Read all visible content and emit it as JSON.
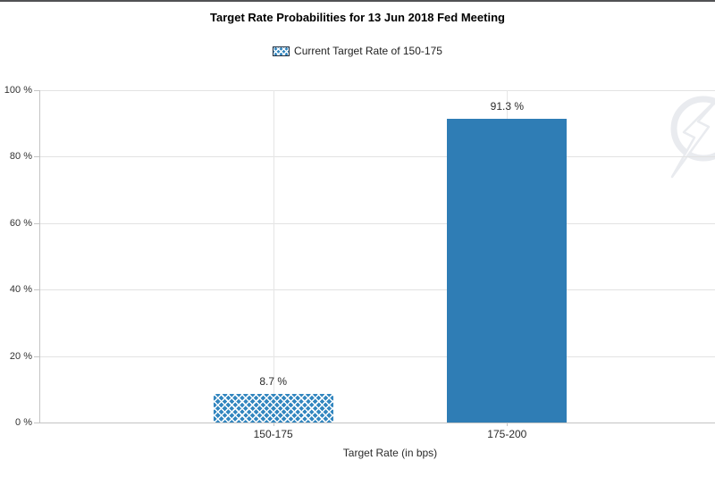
{
  "chart_data": {
    "type": "bar",
    "title": "Target Rate Probabilities for 13 Jun 2018 Fed Meeting",
    "legend": [
      {
        "label": "Current Target Rate of 150-175",
        "style": "crosshatch"
      }
    ],
    "legend_position": "top-center",
    "categories": [
      "150-175",
      "175-200"
    ],
    "values": [
      8.7,
      91.3
    ],
    "value_labels": [
      "8.7 %",
      "91.3 %"
    ],
    "bar_styles": [
      "crosshatch",
      "solid"
    ],
    "xlabel": "Target Rate (in bps)",
    "ylabel": "",
    "ylim": [
      0,
      100
    ],
    "y_ticks": [
      0,
      20,
      40,
      60,
      80,
      100
    ],
    "y_tick_labels": [
      "0 %",
      "20 %",
      "40 %",
      "60 %",
      "80 %",
      "100 %"
    ],
    "grid": true,
    "colors": {
      "bar_blue": "#2f7db5",
      "hatch_blue": "#3286bf",
      "legend_swatch_border": "#1c2b3c",
      "gridline": "#e2e2e2",
      "gridline_vertical": "#e6e6e6",
      "axis_line": "#c4c4c4",
      "watermark": "#e9ebef"
    },
    "watermark_icon": "lightning-bolt-circle-logo"
  }
}
